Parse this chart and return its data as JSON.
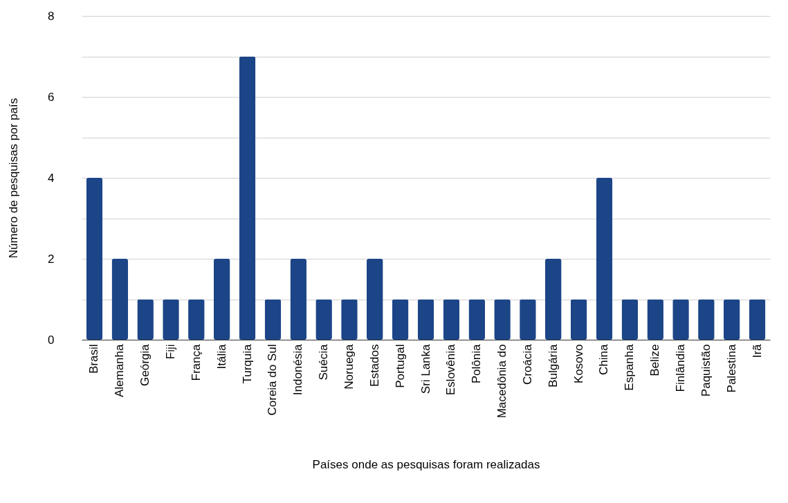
{
  "chart_data": {
    "type": "bar",
    "xlabel": "Países onde as pesquisas foram realizadas",
    "ylabel": "Número de pesquisas por país",
    "categories": [
      "Brasil",
      "Alemanha",
      "Geórgia",
      "Fiji",
      "França",
      "Itália",
      "Turquia",
      "Coreia do Sul",
      "Indonésia",
      "Suécia",
      "Noruega",
      "Estados",
      "Portugal",
      "Sri Lanka",
      "Eslovênia",
      "Polônia",
      "Macedônia do",
      "Croácia",
      "Bulgária",
      "Kosovo",
      "China",
      "Espanha",
      "Belize",
      "Finlândia",
      "Paquistão",
      "Palestina",
      "Irã"
    ],
    "values": [
      4,
      2,
      1,
      1,
      1,
      2,
      7,
      1,
      2,
      1,
      1,
      2,
      1,
      1,
      1,
      1,
      1,
      1,
      2,
      1,
      4,
      1,
      1,
      1,
      1,
      1,
      1
    ],
    "color": "#1c4587",
    "ylim": [
      0,
      8
    ],
    "yticks": [
      0,
      {
        "value": 1,
        "label": null
      },
      2,
      {
        "value": 3,
        "label": null
      },
      4,
      {
        "value": 5,
        "label": null
      },
      6,
      {
        "value": 7,
        "label": null
      },
      8
    ],
    "grid": "y"
  }
}
